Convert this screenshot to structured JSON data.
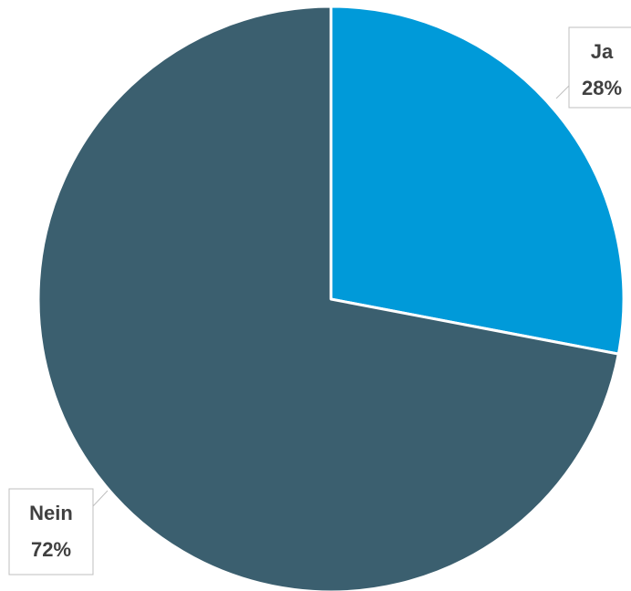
{
  "chart_data": {
    "type": "pie",
    "categories": [
      "Ja",
      "Nein"
    ],
    "values": [
      28,
      72
    ],
    "value_labels": [
      "28%",
      "72%"
    ],
    "colors": [
      "#009ad9",
      "#3b5f6f"
    ],
    "start_angle_deg": 0,
    "direction": "clockwise",
    "legend": "none",
    "data_labels": "callouts"
  }
}
